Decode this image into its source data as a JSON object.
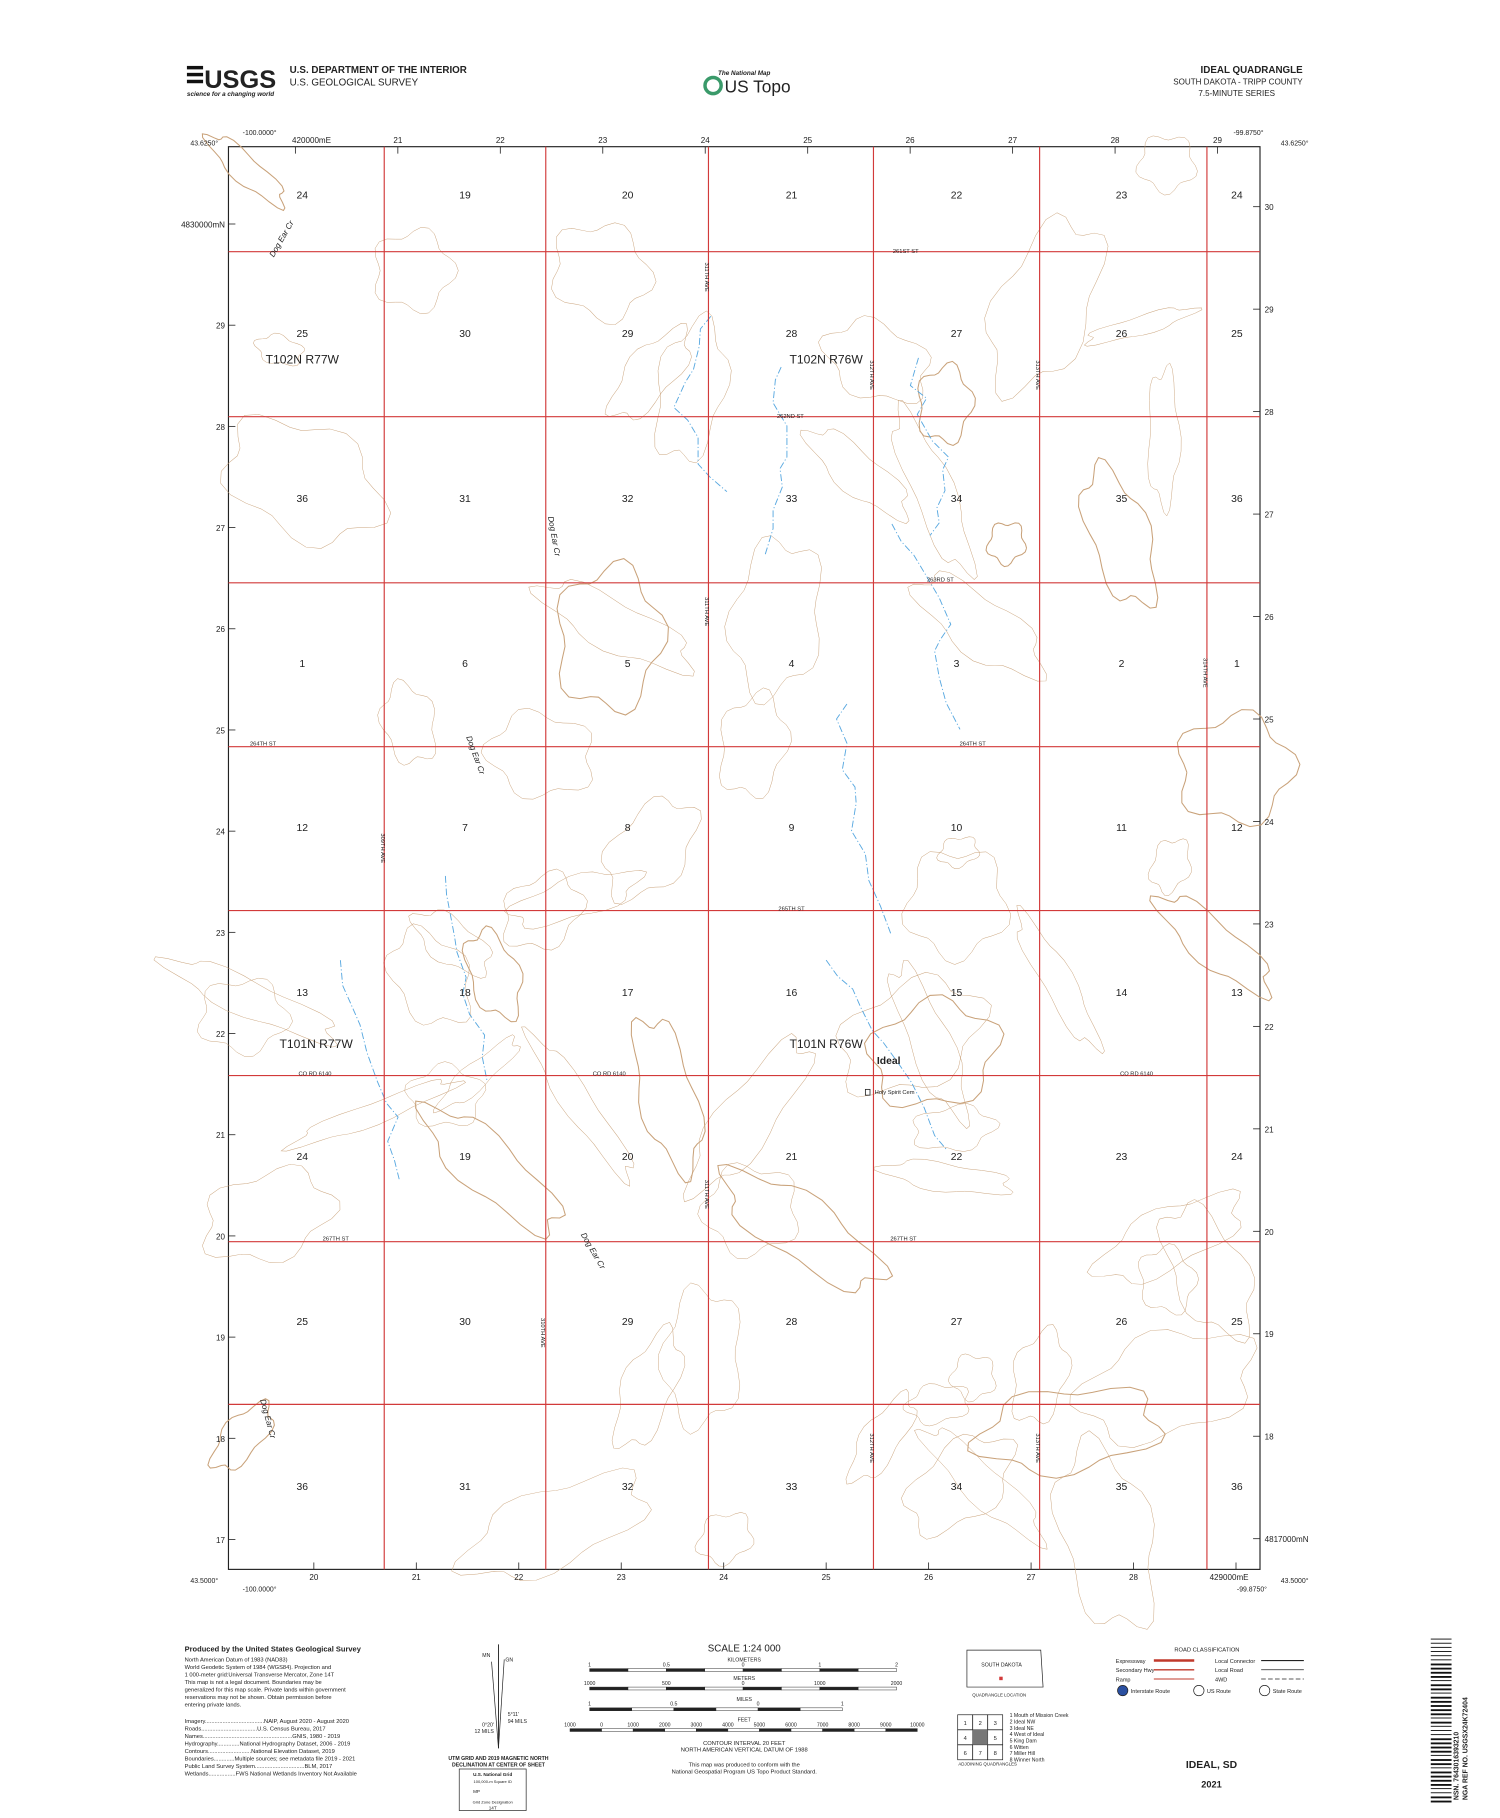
{
  "header": {
    "logo": "USGS",
    "tagline": "science for a changing world",
    "agency": "U.S. DEPARTMENT OF THE INTERIOR",
    "survey": "U.S. GEOLOGICAL SURVEY",
    "national_map": "The National Map",
    "us_topo": "US Topo",
    "quad_title": "IDEAL QUADRANGLE",
    "state_county": "SOUTH DAKOTA - TRIPP COUNTY",
    "series": "7.5-MINUTE SERIES"
  },
  "map": {
    "corners": [
      "-100.0000°",
      "43.6250°",
      "-99.8750°",
      "43.6250°",
      "43.5000°",
      "-100.0000°",
      "43.5000°",
      "-99.8750°"
    ],
    "top_ticks": [
      "420000mE",
      "21",
      "22",
      "23",
      "24",
      "25",
      "26",
      "27",
      "28",
      "29"
    ],
    "bottom_ticks": [
      "20",
      "21",
      "22",
      "23",
      "24",
      "25",
      "26",
      "27",
      "28",
      "429000mE"
    ],
    "left_ticks": [
      "4830000mN",
      "29",
      "28",
      "27",
      "26",
      "25",
      "24",
      "23",
      "22",
      "21",
      "20",
      "19",
      "18",
      "17"
    ],
    "right_ticks": [
      "30",
      "29",
      "28",
      "27",
      "26",
      "25",
      "24",
      "23",
      "22",
      "21",
      "20",
      "19",
      "18",
      "4817000mN"
    ],
    "sections": [
      [
        24,
        19,
        20,
        21,
        22,
        23,
        24
      ],
      [
        25,
        30,
        29,
        28,
        27,
        26,
        25
      ],
      [
        36,
        31,
        32,
        33,
        34,
        35,
        36
      ],
      [
        1,
        6,
        5,
        4,
        3,
        2,
        1
      ],
      [
        12,
        7,
        8,
        9,
        10,
        11,
        12
      ],
      [
        13,
        18,
        17,
        16,
        15,
        14,
        13
      ],
      [
        24,
        19,
        20,
        21,
        22,
        23,
        24
      ],
      [
        25,
        30,
        29,
        28,
        27,
        26,
        25
      ],
      [
        36,
        31,
        32,
        33,
        34,
        35,
        36
      ]
    ],
    "townships": [
      "T102N R77W",
      "T102N R76W",
      "T101N R77W",
      "T101N R76W"
    ],
    "roads": [
      "261ST ST",
      "262ND ST",
      "263RD ST",
      "264TH ST",
      "264TH ST",
      "265TH ST",
      "CO RD 6140",
      "CO RD 6140",
      "CO RD 6140",
      "267TH ST",
      "267TH ST"
    ],
    "avenues": [
      "311TH AVE",
      "312TH AVE",
      "313TH AVE",
      "311TH AVE",
      "309TH AVE",
      "314TH AVE",
      "310TH AVE",
      "311TH AVE",
      "312TH AVE",
      "313TH AVE"
    ],
    "streams": [
      "Dog Ear Cr",
      "Dog Ear Cr",
      "Dog Ear Cr",
      "Dog Ear Cr",
      "Dog Ear Cr"
    ],
    "place": "Ideal",
    "cemetery": "Holy Spirit Cem"
  },
  "footer": {
    "producer": "Produced by the United States Geological Survey",
    "notes": [
      "North American Datum of 1983 (NAD83)",
      "World Geodetic System of 1984 (WGS84). Projection and",
      "1 000-meter grid:Universal Transverse Mercator, Zone 14T",
      "This map is not a legal document. Boundaries may be",
      "generalized for this map scale. Private lands within government",
      "reservations may not be shown. Obtain permission before",
      "entering private lands."
    ],
    "credits": [
      "Imagery.....................................NAIP, August 2020 - August 2020",
      "Roads...................................U.S. Census Bureau, 2017",
      "Names........................................................GNIS, 1980 - 2019",
      "Hydrography..............National Hydrography Dataset, 2006 - 2019",
      "Contours...........................National Elevation Dataset, 2019",
      "Boundaries.............Multiple sources; see metadata file 2019 - 2021",
      "Public Land Survey System...............................BLM, 2017",
      "Wetlands.................FWS National Wetlands Inventory Not Available"
    ],
    "declination": {
      "gn": "GN",
      "mn": "MN",
      "grid_angle": "5°11'",
      "grid_mils": "94 MILS",
      "mag_angle": "0°20'",
      "mag_mils": "12 MILS",
      "caption": [
        "UTM GRID AND 2019 MAGNETIC NORTH",
        "DECLINATION AT CENTER OF SHEET"
      ]
    },
    "usng": {
      "title": "U.S. National Grid",
      "square": "100,000-m Square ID",
      "square_id": "MP",
      "zone": "Grid Zone Designation",
      "zone_id": "14T"
    },
    "scale": {
      "title": "SCALE 1:24 000",
      "km_label": "KILOMETERS",
      "km": [
        "1",
        "0.5",
        "0",
        "1",
        "2"
      ],
      "m_label": "METERS",
      "m": [
        "1000",
        "500",
        "0",
        "1000",
        "2000"
      ],
      "mi_label": "MILES",
      "mi": [
        "1",
        "0.5",
        "0",
        "1"
      ],
      "ft_label": "FEET",
      "ft": [
        "1000",
        "0",
        "1000",
        "2000",
        "3000",
        "4000",
        "5000",
        "6000",
        "7000",
        "8000",
        "9000",
        "10000"
      ]
    },
    "contour": [
      "CONTOUR INTERVAL 20 FEET",
      "NORTH AMERICAN VERTICAL DATUM OF 1988"
    ],
    "standard": [
      "This map was produced to conform with the",
      "National Geospatial Program US Topo Product Standard."
    ],
    "location": {
      "state": "SOUTH DAKOTA",
      "caption": "QUADRANGLE LOCATION"
    },
    "adjoining": {
      "cells": [
        "1",
        "2",
        "3",
        "4",
        "5",
        "6",
        "7",
        "8"
      ],
      "names": [
        "1 Mouth of Mission Creek",
        "2 Ideal NW",
        "3 Ideal NE",
        "4 West of Ideal",
        "5 King Dam",
        "6 Witten",
        "7 Miller Hill",
        "8 Winner North"
      ],
      "caption": "ADJOINING QUADRANGLES"
    },
    "roads": {
      "title": "ROAD CLASSIFICATION",
      "left": [
        "Expressway",
        "Secondary Hwy",
        "Ramp"
      ],
      "right": [
        "Local Connector",
        "Local Road",
        "4WD"
      ],
      "routes": [
        "Interstate Route",
        "US Route",
        "State Route"
      ]
    },
    "quad_name": "IDEAL, SD",
    "year": "2021",
    "barcode": [
      "NSN. 7643016393210",
      "NGA REF NO. USGSX24K72404"
    ]
  }
}
